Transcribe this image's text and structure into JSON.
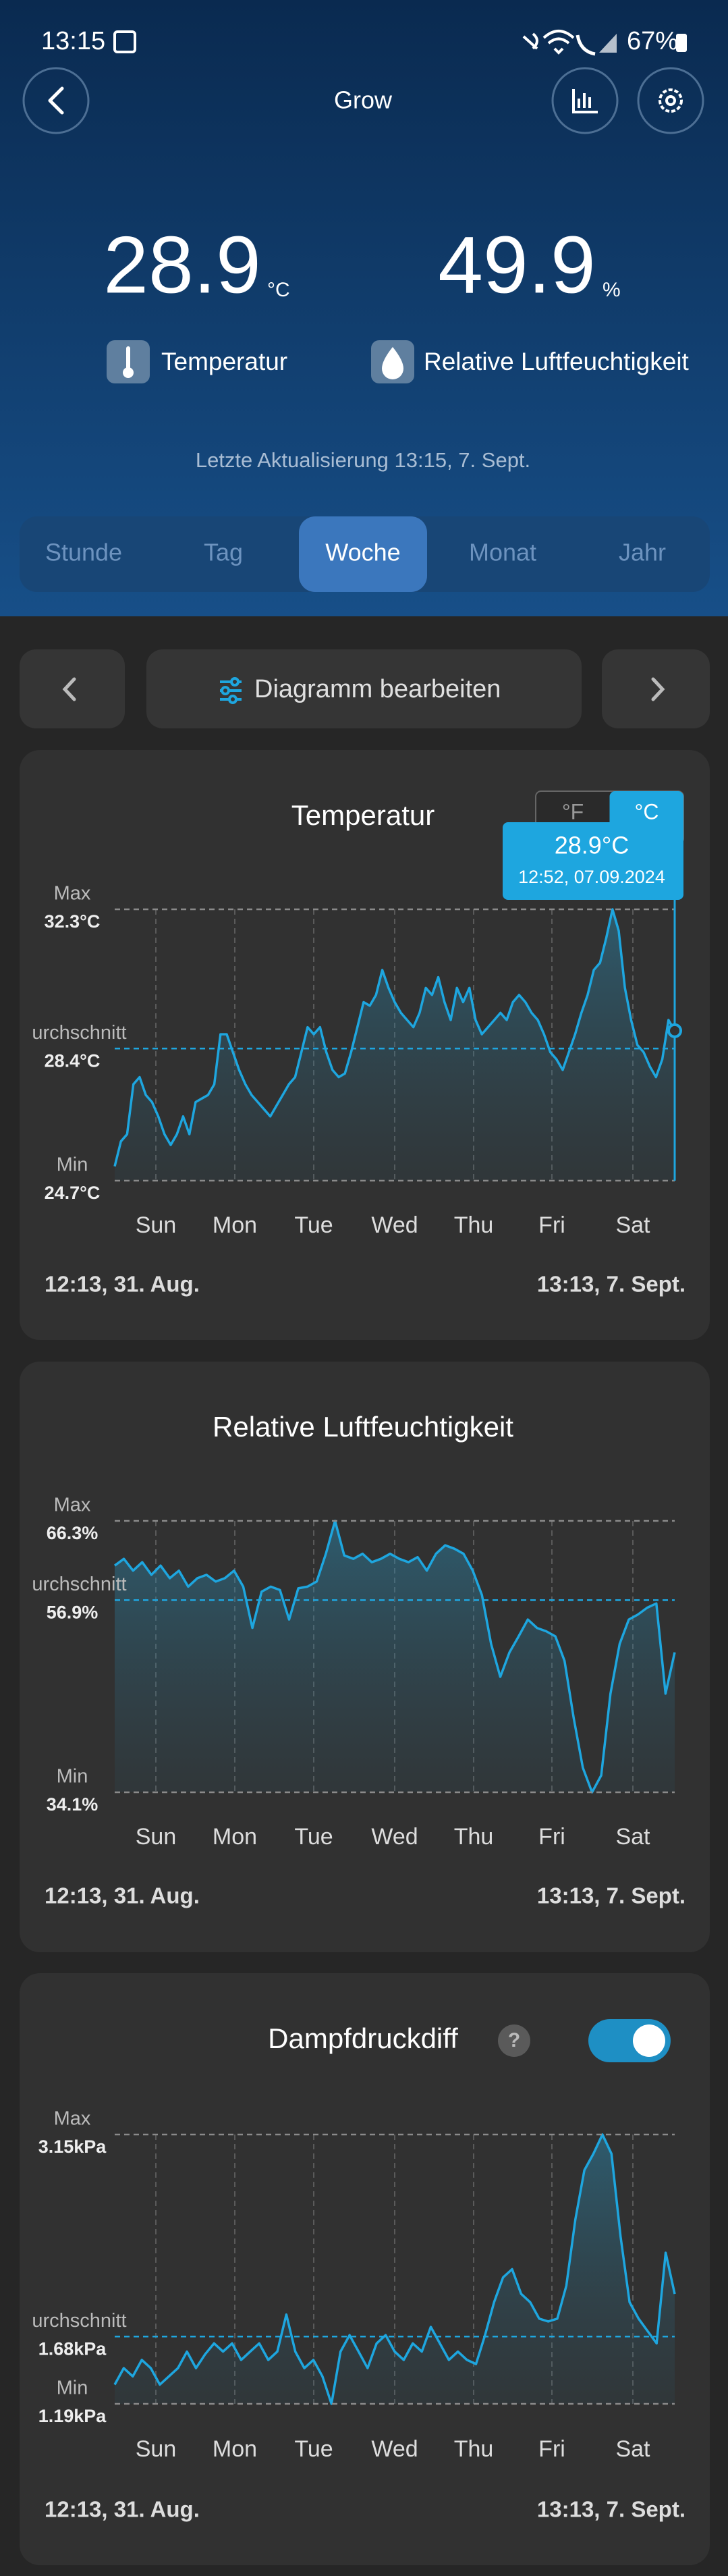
{
  "status_bar": {
    "time": "13:15",
    "battery": "67%"
  },
  "header": {
    "title": "Grow"
  },
  "readings": [
    {
      "value": 28.9,
      "unit": "°C",
      "label": "Temperatur"
    },
    {
      "value": 49.9,
      "unit": "%",
      "label": "Relative Luftfeuchtigkeit"
    }
  ],
  "last_update": "Letzte Aktualisierung 13:15,  7. Sept.",
  "tabs": [
    "Stunde",
    "Tag",
    "Woche",
    "Monat",
    "Jahr"
  ],
  "selected_tab": 2,
  "edit_button": "Diagramm bearbeiten",
  "charts": [
    {
      "title": "Temperatur",
      "color": "#1ea6df",
      "unit_toggle": [
        "°F",
        "°C"
      ],
      "unit_selected": 1,
      "tooltip": {
        "value": "28.9°C",
        "time": "12:52,  07.09.2024"
      },
      "ref_lines": [
        {
          "name": "Max",
          "value": 32.3,
          "label": "32.3°C"
        },
        {
          "name": "Durchschnitt",
          "value": 28.4,
          "label": "28.4°C"
        },
        {
          "name": "Min",
          "value": 24.7,
          "label": "24.7°C"
        }
      ],
      "days": [
        "Sun",
        "Mon",
        "Tue",
        "Wed",
        "Thu",
        "Fri",
        "Sat"
      ],
      "start": "12:13,  31. Aug.",
      "end": "13:13,  7. Sept.",
      "values": [
        25.1,
        25.8,
        26.0,
        27.4,
        27.6,
        27.1,
        26.9,
        26.5,
        26.0,
        25.7,
        26.0,
        26.5,
        26.0,
        26.9,
        27.0,
        27.1,
        27.4,
        28.8,
        28.8,
        28.3,
        27.8,
        27.4,
        27.1,
        26.9,
        26.7,
        26.5,
        26.8,
        27.1,
        27.4,
        27.6,
        28.3,
        29.0,
        28.8,
        29.0,
        28.3,
        27.8,
        27.6,
        27.7,
        28.3,
        29.0,
        29.7,
        29.6,
        29.9,
        30.6,
        30.1,
        29.7,
        29.4,
        29.2,
        29.0,
        29.4,
        30.1,
        29.9,
        30.4,
        29.7,
        29.2,
        30.1,
        29.7,
        30.1,
        29.2,
        28.8,
        29.0,
        29.2,
        29.4,
        29.2,
        29.7,
        29.9,
        29.7,
        29.4,
        29.2,
        28.8,
        28.3,
        28.1,
        27.8,
        28.3,
        28.8,
        29.4,
        29.9,
        30.6,
        30.8,
        31.5,
        32.3,
        31.7,
        30.1,
        29.2,
        28.5,
        28.3,
        27.9,
        27.6,
        28.1,
        29.2,
        28.9
      ]
    },
    {
      "title": "Relative Luftfeuchtigkeit",
      "color": "#1ea6df",
      "ref_lines": [
        {
          "name": "Max",
          "value": 66.3,
          "label": "66.3%"
        },
        {
          "name": "Durchschnitt",
          "value": 56.9,
          "label": "56.9%"
        },
        {
          "name": "Min",
          "value": 34.1,
          "label": "34.1%"
        }
      ],
      "days": [
        "Sun",
        "Mon",
        "Tue",
        "Wed",
        "Thu",
        "Fri",
        "Sat"
      ],
      "start": "12:13,  31. Aug.",
      "end": "13:13,  7. Sept.",
      "values": [
        61.0,
        61.8,
        60.4,
        61.4,
        59.9,
        61.0,
        59.5,
        60.4,
        58.5,
        59.5,
        59.9,
        59.1,
        59.5,
        60.4,
        58.5,
        53.6,
        57.9,
        58.5,
        58.1,
        54.6,
        58.3,
        58.5,
        59.1,
        62.4,
        66.3,
        62.2,
        61.8,
        62.4,
        61.4,
        61.8,
        62.4,
        61.8,
        61.4,
        62.0,
        60.4,
        62.4,
        63.4,
        63.0,
        62.4,
        60.4,
        57.5,
        51.7,
        47.8,
        50.7,
        52.6,
        54.6,
        53.6,
        53.2,
        52.6,
        49.7,
        42.9,
        37.0,
        34.1,
        36.1,
        45.8,
        51.7,
        54.6,
        55.2,
        56.0,
        56.5,
        45.8,
        50.7
      ]
    },
    {
      "title": "Dampfdruckdiff",
      "color": "#1ea6df",
      "help": "?",
      "toggle_on": true,
      "ref_lines": [
        {
          "name": "Max",
          "value": 3.15,
          "label": "3.15kPa"
        },
        {
          "name": "Durchschnitt",
          "value": 1.68,
          "label": "1.68kPa"
        },
        {
          "name": "Min",
          "value": 1.19,
          "label": "1.19kPa"
        }
      ],
      "days": [
        "Sun",
        "Mon",
        "Tue",
        "Wed",
        "Thu",
        "Fri",
        "Sat"
      ],
      "start": "12:13,  31. Aug.",
      "end": "13:13,  7. Sept.",
      "values": [
        1.33,
        1.45,
        1.39,
        1.51,
        1.45,
        1.33,
        1.39,
        1.45,
        1.57,
        1.45,
        1.55,
        1.63,
        1.57,
        1.63,
        1.51,
        1.57,
        1.63,
        1.51,
        1.57,
        1.84,
        1.57,
        1.45,
        1.51,
        1.39,
        1.19,
        1.57,
        1.69,
        1.57,
        1.45,
        1.63,
        1.69,
        1.57,
        1.51,
        1.63,
        1.57,
        1.75,
        1.63,
        1.51,
        1.57,
        1.51,
        1.48,
        1.69,
        1.93,
        2.11,
        2.17,
        1.99,
        1.93,
        1.81,
        1.79,
        1.81,
        2.05,
        2.53,
        2.89,
        3.01,
        3.15,
        3.01,
        2.41,
        1.93,
        1.81,
        1.72,
        1.63,
        2.29,
        1.99
      ]
    }
  ]
}
